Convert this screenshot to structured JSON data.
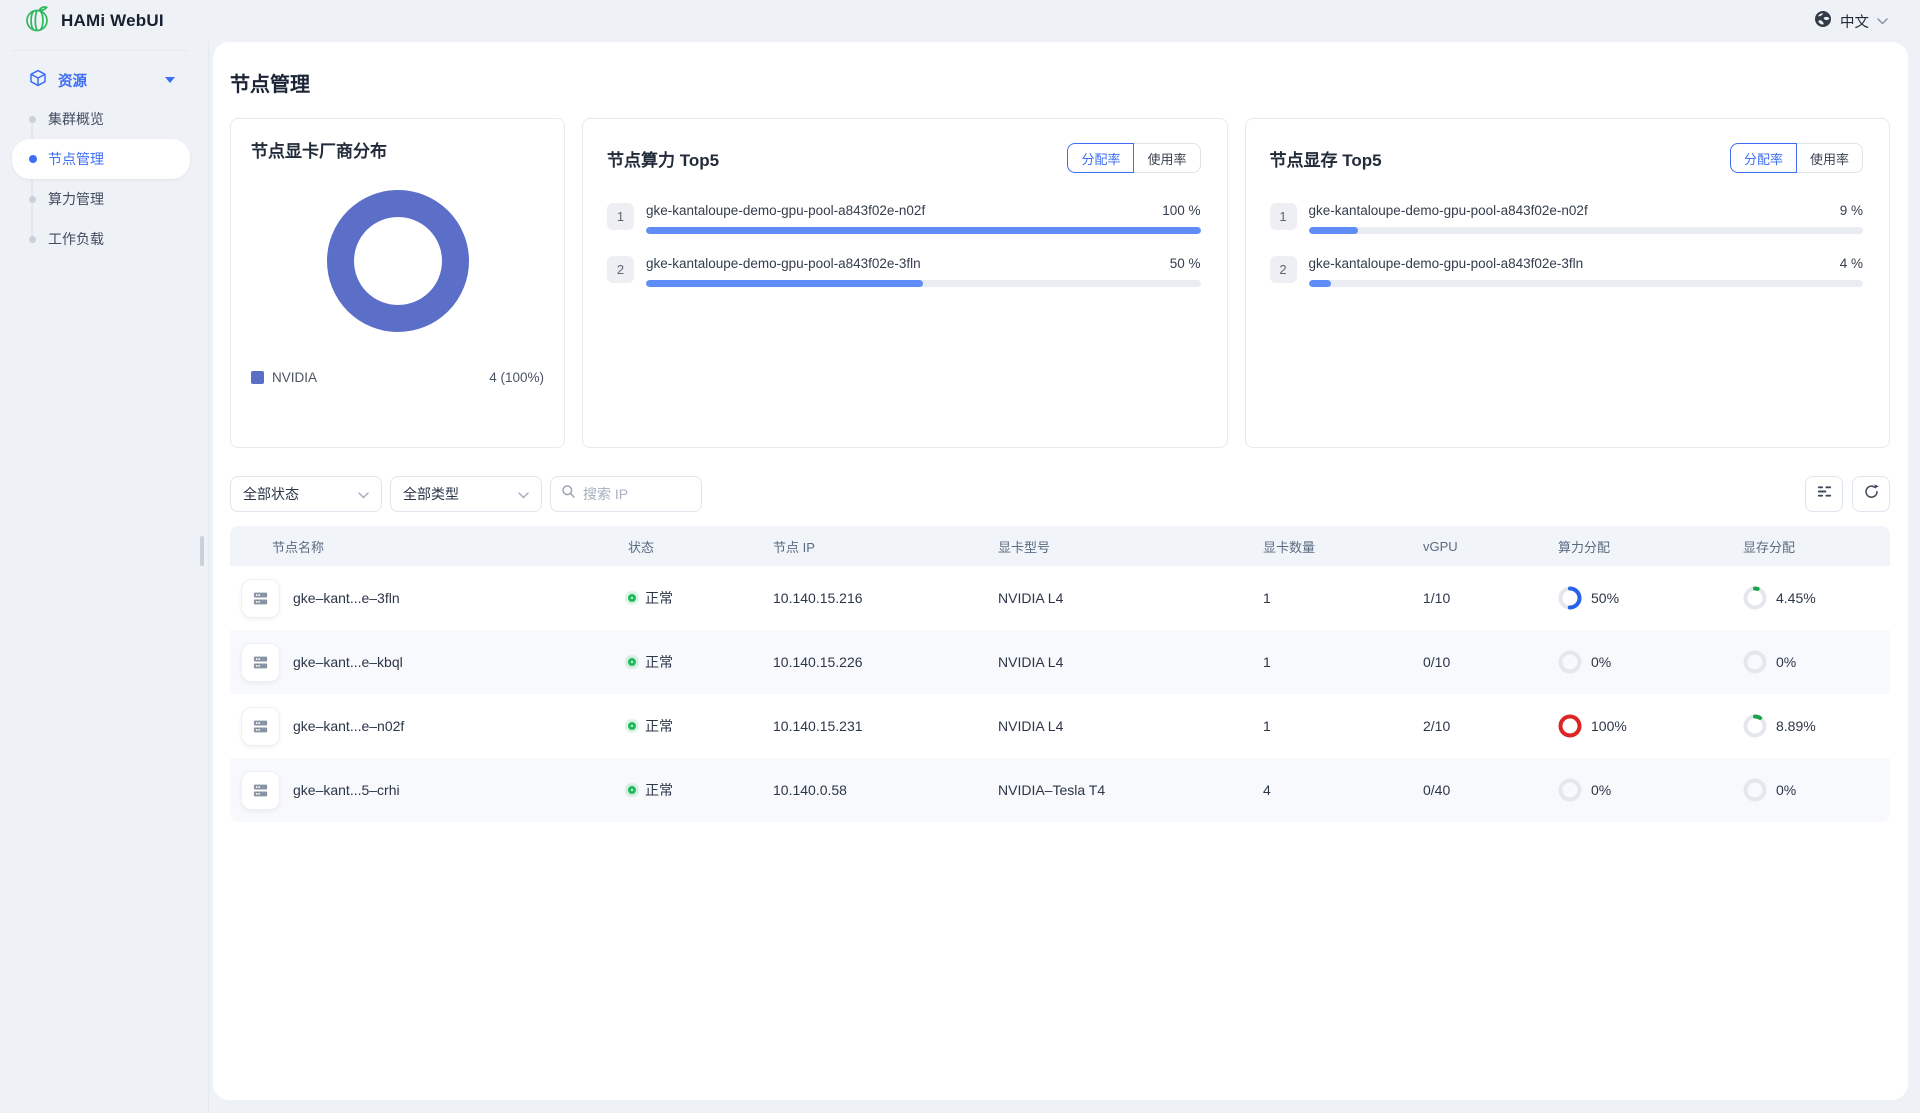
{
  "app": {
    "title": "HAMi WebUI"
  },
  "header": {
    "language": "中文"
  },
  "sidebar": {
    "group_label": "资源",
    "items": [
      {
        "label": "集群概览"
      },
      {
        "label": "节点管理"
      },
      {
        "label": "算力管理"
      },
      {
        "label": "工作负载"
      }
    ]
  },
  "page": {
    "title": "节点管理"
  },
  "cards": {
    "vendor": {
      "title": "节点显卡厂商分布",
      "legend_label": "NVIDIA",
      "legend_value": "4 (100%)",
      "donut_color": "#5b6fc8"
    },
    "compute": {
      "title": "节点算力 Top5",
      "tab_alloc": "分配率",
      "tab_usage": "使用率",
      "bar_color": "#5f8df8",
      "items": [
        {
          "rank": "1",
          "name": "gke-kantaloupe-demo-gpu-pool-a843f02e-n02f",
          "value": "100 %",
          "pct": 100
        },
        {
          "rank": "2",
          "name": "gke-kantaloupe-demo-gpu-pool-a843f02e-3fln",
          "value": "50 %",
          "pct": 50
        }
      ]
    },
    "memory": {
      "title": "节点显存 Top5",
      "tab_alloc": "分配率",
      "tab_usage": "使用率",
      "bar_color": "#5f8df8",
      "items": [
        {
          "rank": "1",
          "name": "gke-kantaloupe-demo-gpu-pool-a843f02e-n02f",
          "value": "9 %",
          "pct": 9
        },
        {
          "rank": "2",
          "name": "gke-kantaloupe-demo-gpu-pool-a843f02e-3fln",
          "value": "4 %",
          "pct": 4
        }
      ]
    }
  },
  "filters": {
    "status": "全部状态",
    "type": "全部类型",
    "search_placeholder": "搜索 IP"
  },
  "table": {
    "columns": [
      "节点名称",
      "状态",
      "节点 IP",
      "显卡型号",
      "显卡数量",
      "vGPU",
      "算力分配",
      "显存分配"
    ],
    "rows": [
      {
        "name": "gke–kant...e–3fln",
        "status": "正常",
        "ip": "10.140.15.216",
        "gpu": "NVIDIA L4",
        "count": "1",
        "vgpu": "1/10",
        "compute": {
          "label": "50%",
          "pct": 50,
          "color": "#2563eb"
        },
        "memory": {
          "label": "4.45%",
          "pct": 4.45,
          "color": "#16a34a"
        }
      },
      {
        "name": "gke–kant...e–kbql",
        "status": "正常",
        "ip": "10.140.15.226",
        "gpu": "NVIDIA L4",
        "count": "1",
        "vgpu": "0/10",
        "compute": {
          "label": "0%",
          "pct": 0,
          "color": "#2563eb"
        },
        "memory": {
          "label": "0%",
          "pct": 0,
          "color": "#16a34a"
        }
      },
      {
        "name": "gke–kant...e–n02f",
        "status": "正常",
        "ip": "10.140.15.231",
        "gpu": "NVIDIA L4",
        "count": "1",
        "vgpu": "2/10",
        "compute": {
          "label": "100%",
          "pct": 100,
          "color": "#dc2626"
        },
        "memory": {
          "label": "8.89%",
          "pct": 8.89,
          "color": "#16a34a"
        }
      },
      {
        "name": "gke–kant...5–crhi",
        "status": "正常",
        "ip": "10.140.0.58",
        "gpu": "NVIDIA–Tesla T4",
        "count": "4",
        "vgpu": "0/40",
        "compute": {
          "label": "0%",
          "pct": 0,
          "color": "#2563eb"
        },
        "memory": {
          "label": "0%",
          "pct": 0,
          "color": "#16a34a"
        }
      }
    ]
  },
  "chart_data": [
    {
      "type": "pie",
      "title": "节点显卡厂商分布",
      "labels": [
        "NVIDIA"
      ],
      "values": [
        4
      ],
      "colors": [
        "#5b6fc8"
      ],
      "legend_position": "bottom"
    },
    {
      "type": "bar",
      "title": "节点算力 Top5 (分配率)",
      "categories": [
        "gke-kantaloupe-demo-gpu-pool-a843f02e-n02f",
        "gke-kantaloupe-demo-gpu-pool-a843f02e-3fln"
      ],
      "values": [
        100,
        50
      ],
      "unit": "%",
      "xlim": [
        0,
        100
      ]
    },
    {
      "type": "bar",
      "title": "节点显存 Top5 (分配率)",
      "categories": [
        "gke-kantaloupe-demo-gpu-pool-a843f02e-n02f",
        "gke-kantaloupe-demo-gpu-pool-a843f02e-3fln"
      ],
      "values": [
        9,
        4
      ],
      "unit": "%",
      "xlim": [
        0,
        100
      ]
    }
  ]
}
